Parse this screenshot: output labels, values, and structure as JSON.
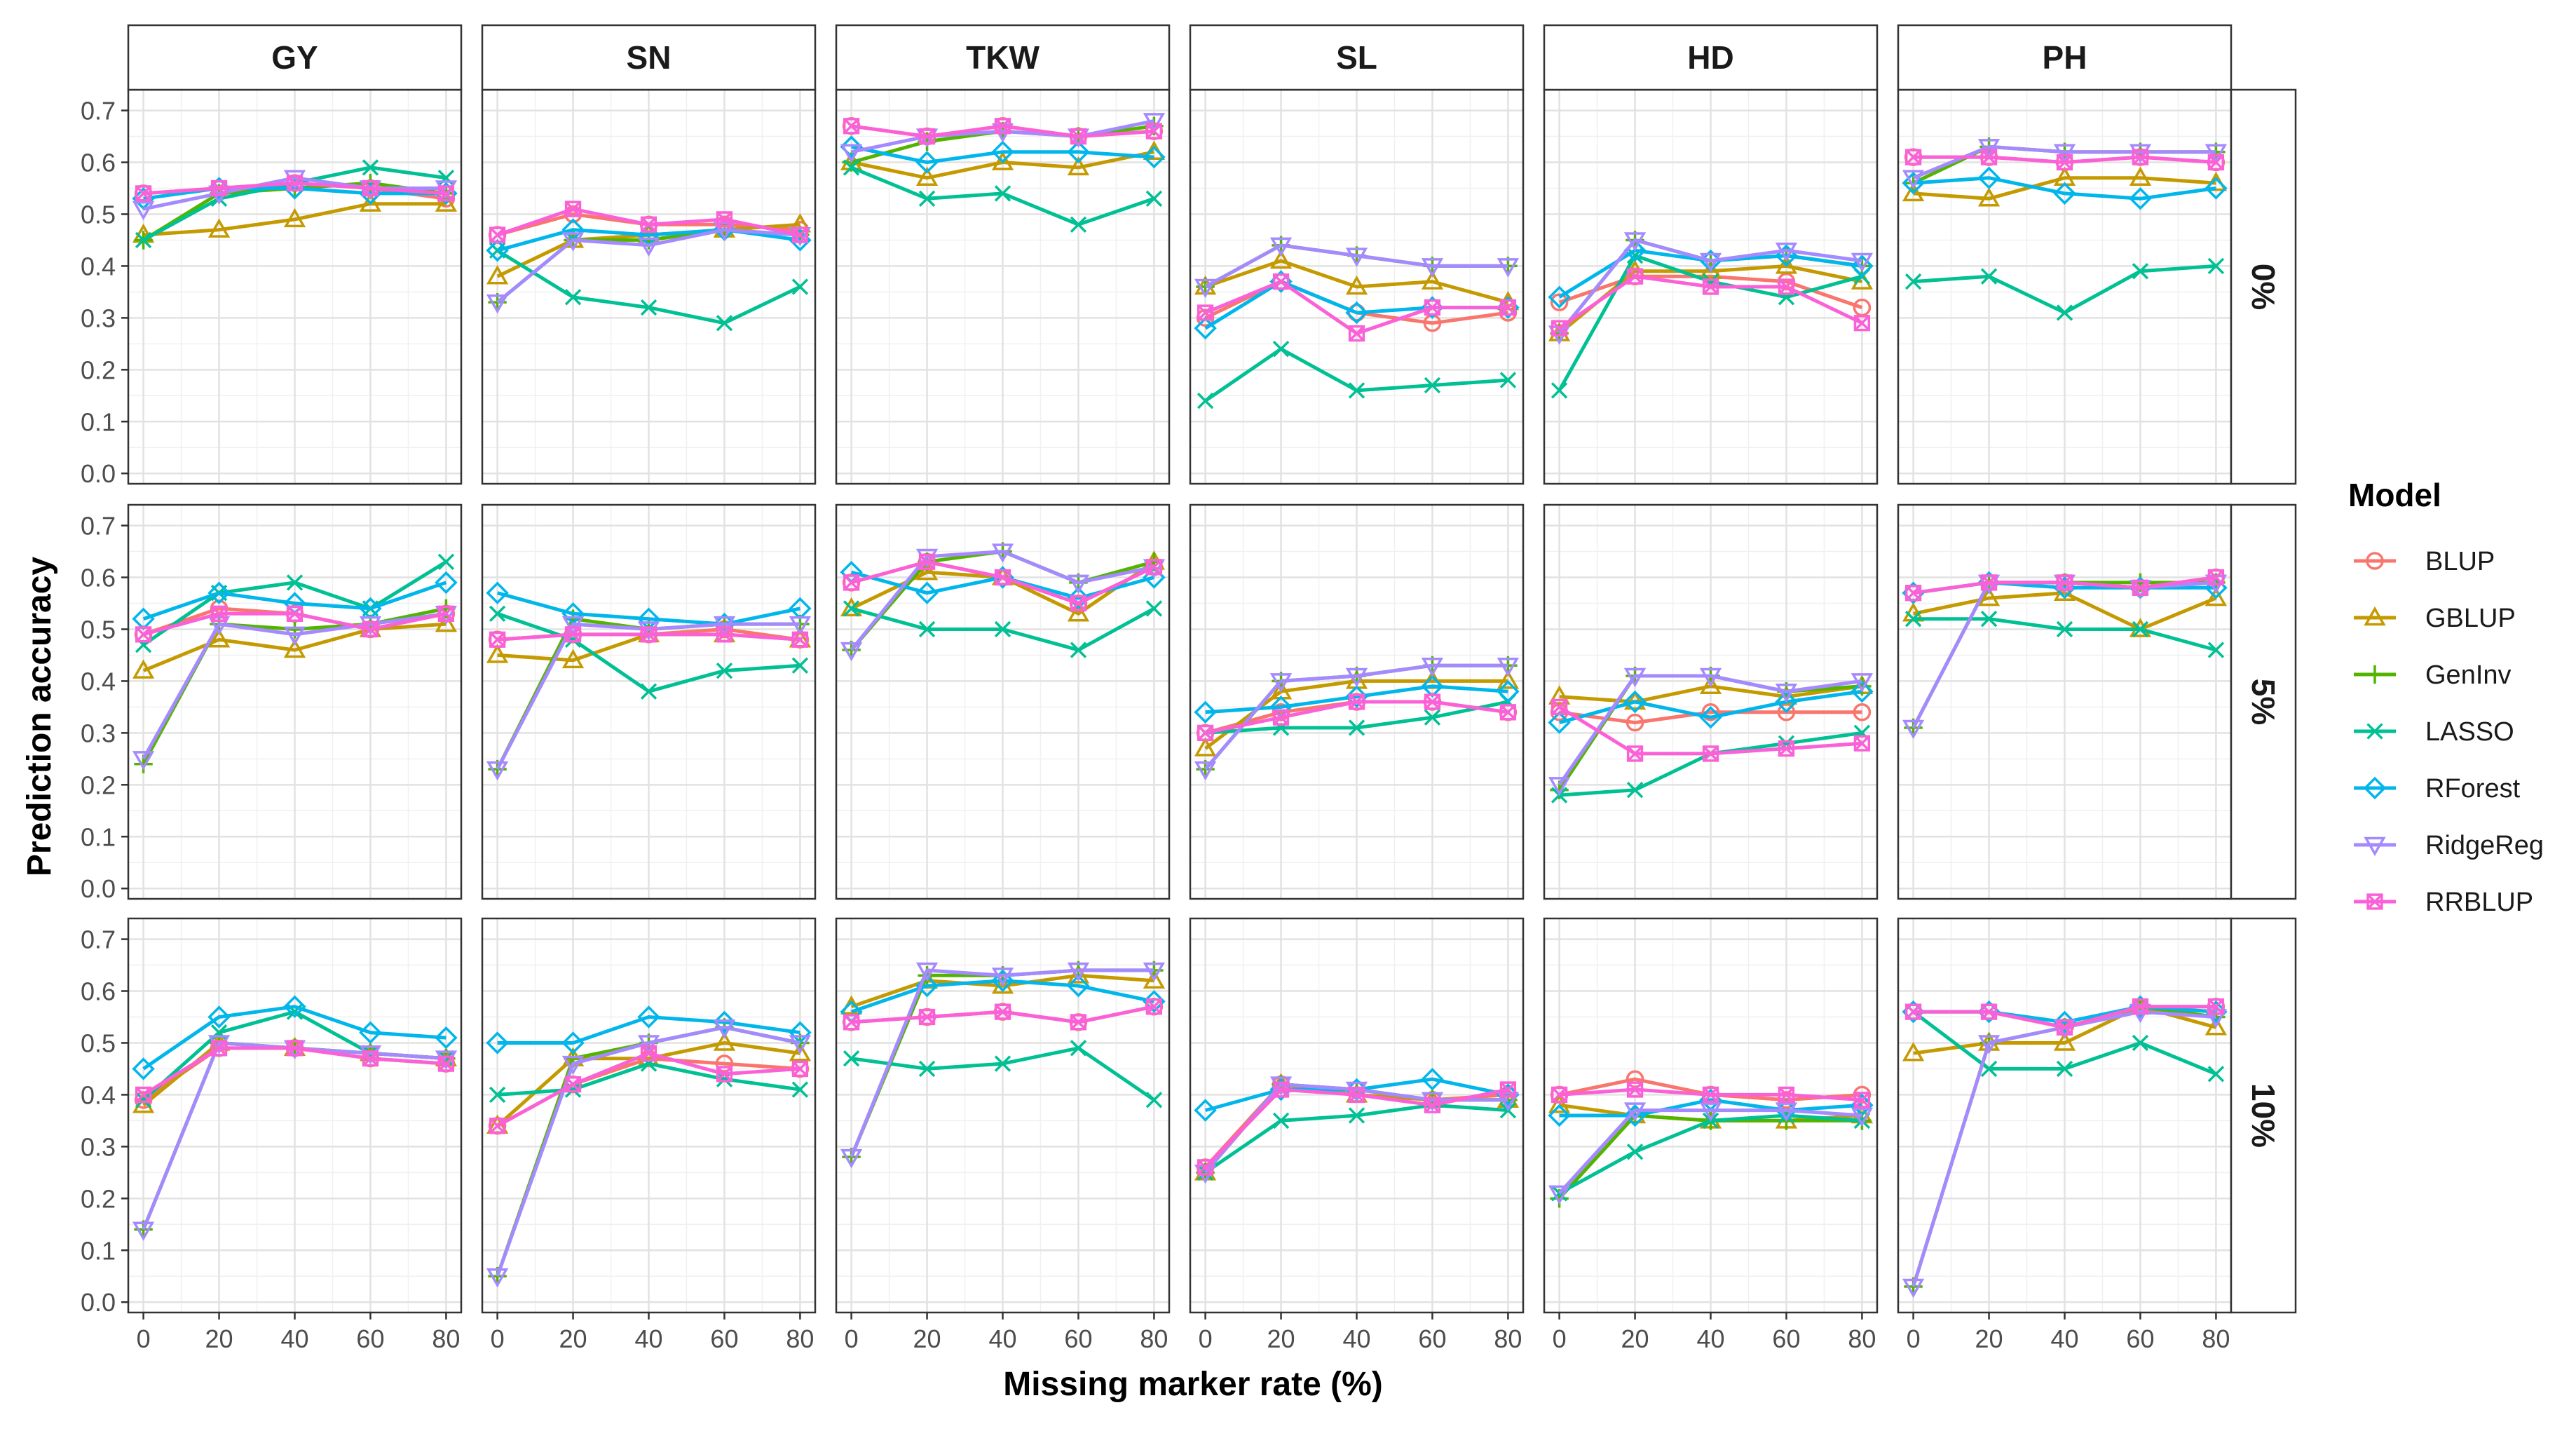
{
  "chart_data": {
    "type": "line",
    "facets": {
      "columns": [
        "GY",
        "SN",
        "TKW",
        "SL",
        "HD",
        "PH"
      ],
      "rows": [
        "0%",
        "5%",
        "10%"
      ]
    },
    "xlabel": "Missing marker rate (%)",
    "ylabel": "Prediction accuracy",
    "x": [
      0,
      20,
      40,
      60,
      80
    ],
    "x_tick_labels": [
      "0",
      "20",
      "40",
      "60",
      "80"
    ],
    "ylim": [
      -0.02,
      0.74
    ],
    "y_ticks": [
      0.0,
      0.1,
      0.2,
      0.3,
      0.4,
      0.5,
      0.6,
      0.7
    ],
    "y_tick_labels": [
      "0.0",
      "0.1",
      "0.2",
      "0.3",
      "0.4",
      "0.5",
      "0.6",
      "0.7"
    ],
    "grid": true,
    "legend": {
      "title": "Model",
      "position": "right",
      "entries": [
        {
          "name": "BLUP",
          "color": "#F8766D",
          "marker": "circle"
        },
        {
          "name": "GBLUP",
          "color": "#C49A00",
          "marker": "triangle"
        },
        {
          "name": "GenInv",
          "color": "#53B400",
          "marker": "plus"
        },
        {
          "name": "LASSO",
          "color": "#00C094",
          "marker": "cross"
        },
        {
          "name": "RForest",
          "color": "#00B6EB",
          "marker": "diamond"
        },
        {
          "name": "RidgeReg",
          "color": "#A58AFF",
          "marker": "triangle-down"
        },
        {
          "name": "RRBLUP",
          "color": "#FB61D7",
          "marker": "square-cross"
        }
      ]
    },
    "panels": {
      "0%": {
        "GY": {
          "BLUP": [
            0.54,
            0.55,
            0.56,
            0.55,
            0.53
          ],
          "GBLUP": [
            0.46,
            0.47,
            0.49,
            0.52,
            0.52
          ],
          "GenInv": [
            0.45,
            0.54,
            0.55,
            0.56,
            0.54
          ],
          "LASSO": [
            0.45,
            0.53,
            0.56,
            0.59,
            0.57
          ],
          "RForest": [
            0.53,
            0.55,
            0.55,
            0.54,
            0.54
          ],
          "RidgeReg": [
            0.51,
            0.54,
            0.57,
            0.55,
            0.55
          ],
          "RRBLUP": [
            0.54,
            0.55,
            0.56,
            0.55,
            0.54
          ]
        },
        "SN": {
          "BLUP": [
            0.46,
            0.5,
            0.48,
            0.48,
            0.47
          ],
          "GBLUP": [
            0.38,
            0.45,
            0.46,
            0.47,
            0.48
          ],
          "GenInv": [
            0.33,
            0.45,
            0.45,
            0.47,
            0.46
          ],
          "LASSO": [
            0.43,
            0.34,
            0.32,
            0.29,
            0.36
          ],
          "RForest": [
            0.43,
            0.47,
            0.46,
            0.47,
            0.45
          ],
          "RidgeReg": [
            0.33,
            0.45,
            0.44,
            0.47,
            0.46
          ],
          "RRBLUP": [
            0.46,
            0.51,
            0.48,
            0.49,
            0.46
          ]
        },
        "TKW": {
          "BLUP": [
            0.67,
            0.65,
            0.67,
            0.65,
            0.66
          ],
          "GBLUP": [
            0.6,
            0.57,
            0.6,
            0.59,
            0.62
          ],
          "GenInv": [
            0.6,
            0.64,
            0.66,
            0.65,
            0.67
          ],
          "LASSO": [
            0.59,
            0.53,
            0.54,
            0.48,
            0.53
          ],
          "RForest": [
            0.63,
            0.6,
            0.62,
            0.62,
            0.61
          ],
          "RidgeReg": [
            0.62,
            0.65,
            0.66,
            0.65,
            0.68
          ],
          "RRBLUP": [
            0.67,
            0.65,
            0.67,
            0.65,
            0.66
          ]
        },
        "SL": {
          "BLUP": [
            0.3,
            0.37,
            0.31,
            0.29,
            0.31
          ],
          "GBLUP": [
            0.36,
            0.41,
            0.36,
            0.37,
            0.33
          ],
          "GenInv": [
            0.36,
            0.44,
            0.42,
            0.4,
            0.4
          ],
          "LASSO": [
            0.14,
            0.24,
            0.16,
            0.17,
            0.18
          ],
          "RForest": [
            0.28,
            0.37,
            0.31,
            0.32,
            0.32
          ],
          "RidgeReg": [
            0.36,
            0.44,
            0.42,
            0.4,
            0.4
          ],
          "RRBLUP": [
            0.31,
            0.37,
            0.27,
            0.32,
            0.32
          ]
        },
        "HD": {
          "BLUP": [
            0.33,
            0.38,
            0.38,
            0.37,
            0.32
          ],
          "GBLUP": [
            0.27,
            0.39,
            0.39,
            0.4,
            0.37
          ],
          "GenInv": [
            0.27,
            0.45,
            0.41,
            0.42,
            0.4
          ],
          "LASSO": [
            0.16,
            0.42,
            0.37,
            0.34,
            0.38
          ],
          "RForest": [
            0.34,
            0.43,
            0.41,
            0.42,
            0.4
          ],
          "RidgeReg": [
            0.27,
            0.45,
            0.41,
            0.43,
            0.41
          ],
          "RRBLUP": [
            0.28,
            0.38,
            0.36,
            0.36,
            0.29
          ]
        },
        "PH": {
          "BLUP": [
            0.61,
            0.61,
            0.6,
            0.61,
            0.6
          ],
          "GBLUP": [
            0.54,
            0.53,
            0.57,
            0.57,
            0.56
          ],
          "GenInv": [
            0.56,
            0.63,
            0.62,
            0.62,
            0.62
          ],
          "LASSO": [
            0.37,
            0.38,
            0.31,
            0.39,
            0.4
          ],
          "RForest": [
            0.56,
            0.57,
            0.54,
            0.53,
            0.55
          ],
          "RidgeReg": [
            0.57,
            0.63,
            0.62,
            0.62,
            0.62
          ],
          "RRBLUP": [
            0.61,
            0.61,
            0.6,
            0.61,
            0.6
          ]
        }
      },
      "5%": {
        "GY": {
          "BLUP": [
            0.49,
            0.54,
            0.53,
            0.5,
            0.53
          ],
          "GBLUP": [
            0.42,
            0.48,
            0.46,
            0.5,
            0.51
          ],
          "GenInv": [
            0.24,
            0.51,
            0.5,
            0.51,
            0.54
          ],
          "LASSO": [
            0.47,
            0.57,
            0.59,
            0.54,
            0.63
          ],
          "RForest": [
            0.52,
            0.57,
            0.55,
            0.54,
            0.59
          ],
          "RidgeReg": [
            0.25,
            0.51,
            0.49,
            0.51,
            0.53
          ],
          "RRBLUP": [
            0.49,
            0.53,
            0.53,
            0.5,
            0.53
          ]
        },
        "SN": {
          "BLUP": [
            0.48,
            0.49,
            0.49,
            0.5,
            0.48
          ],
          "GBLUP": [
            0.45,
            0.44,
            0.49,
            0.49,
            0.48
          ],
          "GenInv": [
            0.23,
            0.52,
            0.5,
            0.51,
            0.51
          ],
          "LASSO": [
            0.53,
            0.48,
            0.38,
            0.42,
            0.43
          ],
          "RForest": [
            0.57,
            0.53,
            0.52,
            0.51,
            0.54
          ],
          "RidgeReg": [
            0.23,
            0.51,
            0.5,
            0.51,
            0.51
          ],
          "RRBLUP": [
            0.48,
            0.49,
            0.49,
            0.49,
            0.48
          ]
        },
        "TKW": {
          "BLUP": [
            0.59,
            0.63,
            0.6,
            0.55,
            0.62
          ],
          "GBLUP": [
            0.54,
            0.61,
            0.6,
            0.53,
            0.63
          ],
          "GenInv": [
            0.46,
            0.63,
            0.65,
            0.59,
            0.63
          ],
          "LASSO": [
            0.54,
            0.5,
            0.5,
            0.46,
            0.54
          ],
          "RForest": [
            0.61,
            0.57,
            0.6,
            0.56,
            0.6
          ],
          "RidgeReg": [
            0.46,
            0.64,
            0.65,
            0.59,
            0.62
          ],
          "RRBLUP": [
            0.59,
            0.63,
            0.6,
            0.55,
            0.62
          ]
        },
        "SL": {
          "BLUP": [
            0.3,
            0.34,
            0.36,
            0.36,
            0.34
          ],
          "GBLUP": [
            0.27,
            0.38,
            0.4,
            0.4,
            0.4
          ],
          "GenInv": [
            0.23,
            0.4,
            0.41,
            0.43,
            0.43
          ],
          "LASSO": [
            0.3,
            0.31,
            0.31,
            0.33,
            0.36
          ],
          "RForest": [
            0.34,
            0.35,
            0.37,
            0.39,
            0.38
          ],
          "RidgeReg": [
            0.23,
            0.4,
            0.41,
            0.43,
            0.43
          ],
          "RRBLUP": [
            0.3,
            0.33,
            0.36,
            0.36,
            0.34
          ]
        },
        "HD": {
          "BLUP": [
            0.34,
            0.32,
            0.34,
            0.34,
            0.34
          ],
          "GBLUP": [
            0.37,
            0.36,
            0.39,
            0.37,
            0.39
          ],
          "GenInv": [
            0.19,
            0.41,
            0.41,
            0.38,
            0.39
          ],
          "LASSO": [
            0.18,
            0.19,
            0.26,
            0.28,
            0.3
          ],
          "RForest": [
            0.32,
            0.36,
            0.33,
            0.36,
            0.38
          ],
          "RidgeReg": [
            0.2,
            0.41,
            0.41,
            0.38,
            0.4
          ],
          "RRBLUP": [
            0.35,
            0.26,
            0.26,
            0.27,
            0.28
          ]
        },
        "PH": {
          "BLUP": [
            0.57,
            0.59,
            0.59,
            0.58,
            0.6
          ],
          "GBLUP": [
            0.53,
            0.56,
            0.57,
            0.5,
            0.56
          ],
          "GenInv": [
            0.31,
            0.59,
            0.59,
            0.59,
            0.59
          ],
          "LASSO": [
            0.52,
            0.52,
            0.5,
            0.5,
            0.46
          ],
          "RForest": [
            0.57,
            0.59,
            0.58,
            0.58,
            0.58
          ],
          "RidgeReg": [
            0.31,
            0.59,
            0.59,
            0.58,
            0.59
          ],
          "RRBLUP": [
            0.57,
            0.59,
            0.59,
            0.58,
            0.6
          ]
        }
      },
      "10%": {
        "GY": {
          "BLUP": [
            0.39,
            0.49,
            0.49,
            0.47,
            0.46
          ],
          "GBLUP": [
            0.38,
            0.5,
            0.49,
            0.48,
            0.47
          ],
          "GenInv": [
            0.14,
            0.5,
            0.49,
            0.48,
            0.47
          ],
          "LASSO": [
            0.39,
            0.52,
            0.56,
            0.48,
            0.47
          ],
          "RForest": [
            0.45,
            0.55,
            0.57,
            0.52,
            0.51
          ],
          "RidgeReg": [
            0.14,
            0.5,
            0.49,
            0.48,
            0.47
          ],
          "RRBLUP": [
            0.4,
            0.49,
            0.49,
            0.47,
            0.46
          ]
        },
        "SN": {
          "BLUP": [
            0.34,
            0.42,
            0.47,
            0.46,
            0.45
          ],
          "GBLUP": [
            0.34,
            0.47,
            0.47,
            0.5,
            0.48
          ],
          "GenInv": [
            0.05,
            0.47,
            0.5,
            0.53,
            0.5
          ],
          "LASSO": [
            0.4,
            0.41,
            0.46,
            0.43,
            0.41
          ],
          "RForest": [
            0.5,
            0.5,
            0.55,
            0.54,
            0.52
          ],
          "RidgeReg": [
            0.05,
            0.46,
            0.5,
            0.53,
            0.5
          ],
          "RRBLUP": [
            0.34,
            0.42,
            0.48,
            0.44,
            0.45
          ]
        },
        "TKW": {
          "BLUP": [
            0.54,
            0.55,
            0.56,
            0.54,
            0.57
          ],
          "GBLUP": [
            0.57,
            0.62,
            0.61,
            0.63,
            0.62
          ],
          "GenInv": [
            0.28,
            0.63,
            0.63,
            0.64,
            0.64
          ],
          "LASSO": [
            0.47,
            0.45,
            0.46,
            0.49,
            0.39
          ],
          "RForest": [
            0.56,
            0.61,
            0.62,
            0.61,
            0.58
          ],
          "RidgeReg": [
            0.28,
            0.64,
            0.63,
            0.64,
            0.64
          ],
          "RRBLUP": [
            0.54,
            0.55,
            0.56,
            0.54,
            0.57
          ]
        },
        "SL": {
          "BLUP": [
            0.26,
            0.42,
            0.41,
            0.39,
            0.4
          ],
          "GBLUP": [
            0.25,
            0.42,
            0.4,
            0.39,
            0.39
          ],
          "GenInv": [
            0.25,
            0.42,
            0.41,
            0.39,
            0.39
          ],
          "LASSO": [
            0.25,
            0.35,
            0.36,
            0.38,
            0.37
          ],
          "RForest": [
            0.37,
            0.41,
            0.41,
            0.43,
            0.4
          ],
          "RidgeReg": [
            0.25,
            0.42,
            0.41,
            0.39,
            0.39
          ],
          "RRBLUP": [
            0.26,
            0.41,
            0.4,
            0.38,
            0.41
          ]
        },
        "HD": {
          "BLUP": [
            0.4,
            0.43,
            0.4,
            0.39,
            0.4
          ],
          "GBLUP": [
            0.38,
            0.36,
            0.35,
            0.35,
            0.36
          ],
          "GenInv": [
            0.2,
            0.36,
            0.35,
            0.35,
            0.35
          ],
          "LASSO": [
            0.21,
            0.29,
            0.35,
            0.36,
            0.35
          ],
          "RForest": [
            0.36,
            0.36,
            0.39,
            0.37,
            0.38
          ],
          "RidgeReg": [
            0.21,
            0.37,
            0.37,
            0.37,
            0.36
          ],
          "RRBLUP": [
            0.4,
            0.41,
            0.4,
            0.4,
            0.39
          ]
        },
        "PH": {
          "BLUP": [
            0.56,
            0.56,
            0.53,
            0.57,
            0.57
          ],
          "GBLUP": [
            0.48,
            0.5,
            0.5,
            0.57,
            0.53
          ],
          "GenInv": [
            0.03,
            0.5,
            0.53,
            0.57,
            0.55
          ],
          "LASSO": [
            0.56,
            0.45,
            0.45,
            0.5,
            0.44
          ],
          "RForest": [
            0.56,
            0.56,
            0.54,
            0.57,
            0.56
          ],
          "RidgeReg": [
            0.03,
            0.5,
            0.53,
            0.56,
            0.55
          ],
          "RRBLUP": [
            0.56,
            0.56,
            0.53,
            0.57,
            0.57
          ]
        }
      }
    }
  }
}
